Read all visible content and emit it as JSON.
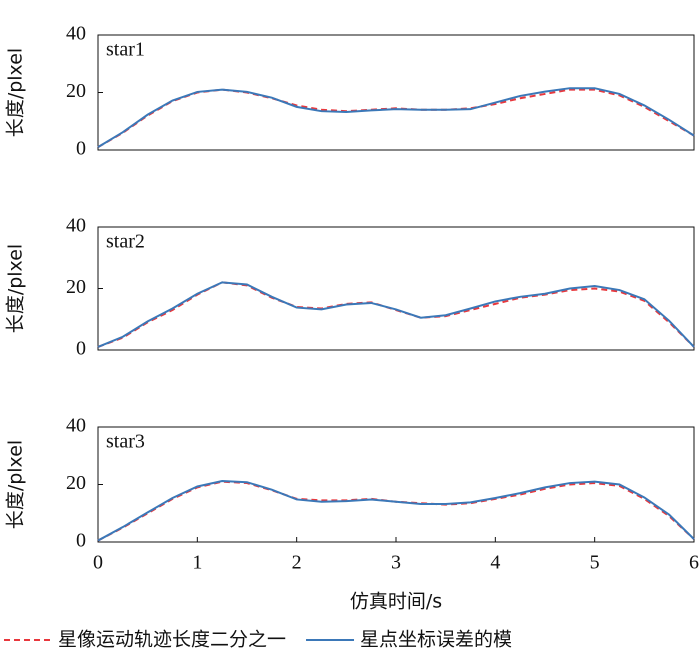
{
  "chart_data": [
    {
      "type": "line",
      "annotation": "star1",
      "y_label": "长度/plxel",
      "xlim": [
        0,
        6
      ],
      "ylim": [
        0,
        40
      ],
      "yticks": [
        0,
        20,
        40
      ],
      "x": [
        0,
        0.25,
        0.5,
        0.75,
        1,
        1.25,
        1.5,
        1.75,
        2,
        2.25,
        2.5,
        2.75,
        3,
        3.25,
        3.5,
        3.75,
        4,
        4.25,
        4.5,
        4.75,
        5,
        5.25,
        5.5,
        5.75,
        6
      ],
      "series": [
        {
          "color": "#e8383d",
          "dash": true,
          "values": [
            1,
            6,
            12,
            17,
            20,
            21,
            20,
            18,
            15.5,
            14,
            13.5,
            14,
            14.5,
            14,
            14,
            14.5,
            16,
            18,
            19.5,
            21,
            21,
            19,
            15,
            10,
            5
          ]
        },
        {
          "color": "#3b78b8",
          "dash": false,
          "values": [
            1,
            6.2,
            12.3,
            17.2,
            20.2,
            21,
            20.2,
            18.2,
            15,
            13.5,
            13.2,
            13.8,
            14.2,
            14,
            14,
            14.2,
            16.5,
            18.8,
            20.3,
            21.5,
            21.5,
            19.5,
            15.5,
            10.5,
            5
          ]
        }
      ]
    },
    {
      "type": "line",
      "annotation": "star2",
      "y_label": "长度/plxel",
      "xlim": [
        0,
        6
      ],
      "ylim": [
        0,
        40
      ],
      "yticks": [
        0,
        20,
        40
      ],
      "x": [
        0,
        0.25,
        0.5,
        0.75,
        1,
        1.25,
        1.5,
        1.75,
        2,
        2.25,
        2.5,
        2.75,
        3,
        3.25,
        3.5,
        3.75,
        4,
        4.25,
        4.5,
        4.75,
        5,
        5.25,
        5.5,
        5.75,
        6
      ],
      "series": [
        {
          "color": "#e8383d",
          "dash": true,
          "values": [
            1,
            4,
            9,
            13,
            18,
            22,
            21,
            17,
            14,
            13.5,
            15,
            15.5,
            13,
            10.5,
            11,
            13,
            15,
            17,
            18,
            19.5,
            20,
            19,
            16,
            9,
            1
          ]
        },
        {
          "color": "#3b78b8",
          "dash": false,
          "values": [
            1,
            4.3,
            9.3,
            13.5,
            18.3,
            22,
            21.3,
            17.3,
            13.8,
            13.2,
            14.8,
            15.3,
            13.2,
            10.5,
            11.3,
            13.5,
            15.8,
            17.3,
            18.3,
            20,
            20.8,
            19.5,
            16.5,
            9.5,
            1
          ]
        }
      ]
    },
    {
      "type": "line",
      "annotation": "star3",
      "y_label": "长度/plxel",
      "x_label": "仿真时间/s",
      "xlim": [
        0,
        6
      ],
      "ylim": [
        0,
        40
      ],
      "yticks": [
        0,
        20,
        40
      ],
      "xticks": [
        0,
        1,
        2,
        3,
        4,
        5,
        6
      ],
      "x": [
        0,
        0.25,
        0.5,
        0.75,
        1,
        1.25,
        1.5,
        1.75,
        2,
        2.25,
        2.5,
        2.75,
        3,
        3.25,
        3.5,
        3.75,
        4,
        4.25,
        4.5,
        4.75,
        5,
        5.25,
        5.5,
        5.75,
        6
      ],
      "series": [
        {
          "name": "星像运动轨迹长度二分之一",
          "color": "#e8383d",
          "dash": true,
          "values": [
            0.5,
            5,
            10,
            15,
            19,
            21,
            20.5,
            18,
            15,
            14.5,
            14.5,
            15,
            14,
            13.5,
            13,
            13.5,
            15,
            16.5,
            18.5,
            20,
            20.5,
            19.5,
            15,
            9,
            1
          ]
        },
        {
          "name": "星点坐标误差的模",
          "color": "#3b78b8",
          "dash": false,
          "values": [
            0.5,
            5.2,
            10.3,
            15.3,
            19.3,
            21.2,
            20.8,
            18.2,
            14.8,
            14,
            14.2,
            14.8,
            14,
            13.2,
            13.2,
            13.8,
            15.3,
            17,
            19,
            20.5,
            21,
            20,
            15.5,
            9.5,
            1
          ]
        }
      ]
    }
  ]
}
